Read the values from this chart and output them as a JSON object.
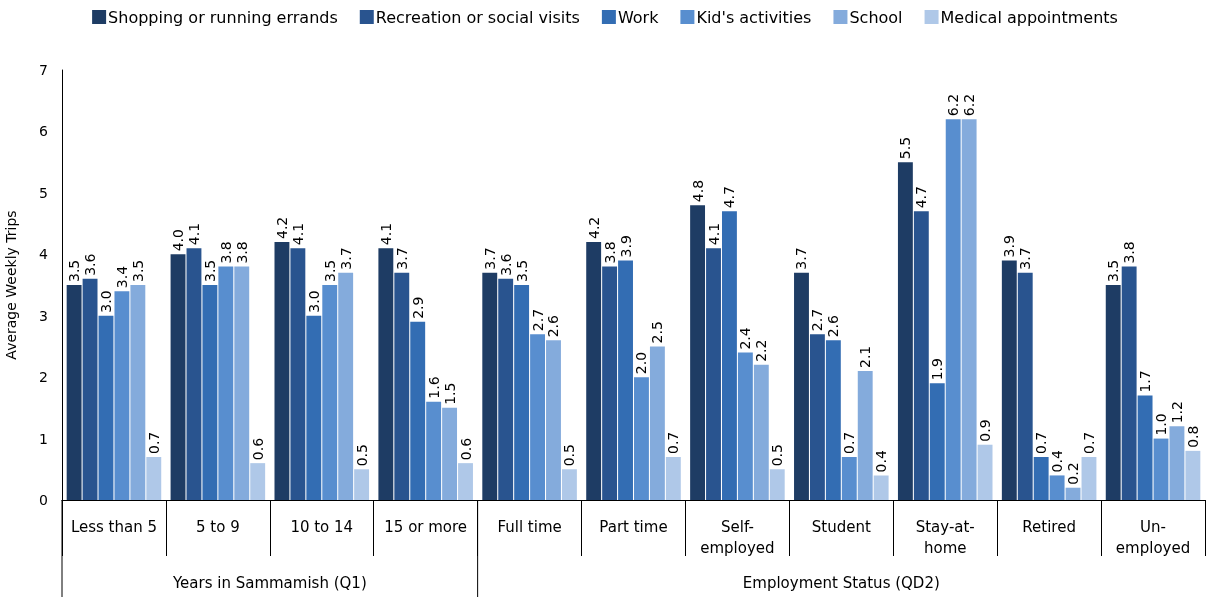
{
  "chart_data": {
    "type": "bar",
    "categories": [
      "Less than 5",
      "5 to 9",
      "10 to 14",
      "15 or more",
      "Full time",
      "Part time",
      "Self-employed",
      "Student",
      "Stay-at-home",
      "Retired",
      "Un-employed"
    ],
    "series": [
      {
        "name": "Shopping or running errands",
        "color": "#1e3c64",
        "values": [
          3.5,
          4.0,
          4.2,
          4.1,
          3.7,
          4.2,
          4.8,
          3.7,
          5.5,
          3.9,
          3.5
        ],
        "value_labels": [
          "3.5",
          "4.0",
          "4.2",
          "4.1",
          "3.7",
          "4.2",
          "4.8",
          "3.7",
          "5.5",
          "3.9",
          "3.5"
        ]
      },
      {
        "name": "Recreation or social visits",
        "color": "#29548f",
        "values": [
          3.6,
          4.1,
          4.1,
          3.7,
          3.6,
          3.8,
          4.1,
          2.7,
          4.7,
          3.7,
          3.8
        ],
        "value_labels": [
          "3.6",
          "4.1",
          "4.1",
          "3.7",
          "3.6",
          "3.8",
          "4.1",
          "2.7",
          "4.7",
          "3.7",
          "3.8"
        ]
      },
      {
        "name": "Work",
        "color": "#336db3",
        "values": [
          3.0,
          3.5,
          3.0,
          2.9,
          3.5,
          3.9,
          4.7,
          2.6,
          1.9,
          0.7,
          1.7
        ],
        "value_labels": [
          "3.0",
          "3.5",
          "3.0",
          "2.9",
          "3.5",
          "3.9",
          "4.7",
          "2.6",
          "1.9",
          "0.7",
          "1.7"
        ]
      },
      {
        "name": "Kid's activities",
        "color": "#588ecf",
        "values": [
          3.4,
          3.8,
          3.5,
          1.6,
          2.7,
          2.0,
          2.4,
          0.7,
          6.2,
          0.4,
          1.0
        ],
        "value_labels": [
          "3.4",
          "3.8",
          "3.5",
          "1.6",
          "2.7",
          "2.0",
          "2.4",
          "0.7",
          "6.2",
          "0.4",
          "1.0"
        ]
      },
      {
        "name": "School",
        "color": "#84abdc",
        "values": [
          3.5,
          3.8,
          3.7,
          1.5,
          2.6,
          2.5,
          2.2,
          2.1,
          6.2,
          0.2,
          1.2
        ],
        "value_labels": [
          "3.5",
          "3.8",
          "3.7",
          "1.5",
          "2.6",
          "2.5",
          "2.2",
          "2.1",
          "6.2",
          "0.2",
          "1.2"
        ]
      },
      {
        "name": "Medical appointments",
        "color": "#afc8e8",
        "values": [
          0.7,
          0.6,
          0.5,
          0.6,
          0.5,
          0.7,
          0.5,
          0.4,
          0.9,
          0.7,
          0.8
        ],
        "value_labels": [
          "0.7",
          "0.6",
          "0.5",
          "0.6",
          "0.5",
          "0.7",
          "0.5",
          "0.4",
          "0.9",
          "0.7",
          "0.8"
        ]
      }
    ],
    "ylabel": "Average Weekly Trips",
    "ylim": [
      0,
      7
    ],
    "yticks": [
      0,
      1,
      2,
      3,
      4,
      5,
      6,
      7
    ],
    "annotations": [
      "Years in Sammamish (Q1)",
      "Employment Status (QD2)"
    ],
    "legend": "top",
    "grid": false
  }
}
